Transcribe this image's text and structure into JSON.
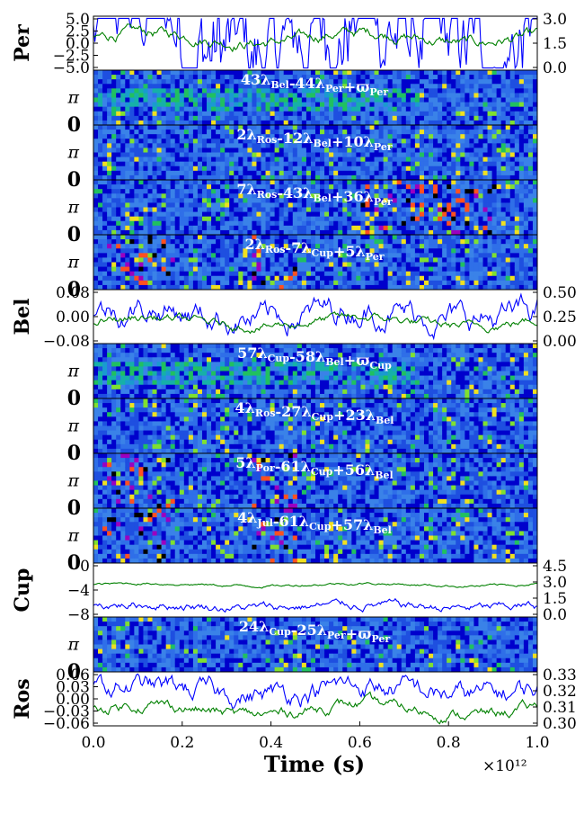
{
  "chart_data": {
    "type": "line",
    "xlabel": "Time (s)",
    "x_multiplier": "×10¹²",
    "xlim": [
      0.0,
      1.0
    ],
    "x_ticks": [
      "0.0",
      "0.2",
      "0.4",
      "0.6",
      "0.8",
      "1.0"
    ],
    "pi_label": "π",
    "zero_label": "0",
    "line_colors": {
      "blue": "#0000ff",
      "green": "#008000"
    },
    "heatmap_palette": [
      "#0000cc",
      "#1e4fe0",
      "#2f6fe8",
      "#3a82e8",
      "#1a9ad0",
      "#16b0a8",
      "#20c060",
      "#7fe030",
      "#f0e020",
      "#ff5020",
      "#9b00c0",
      "#000000"
    ],
    "planets": [
      {
        "name": "Per",
        "left_ticks": [
          "5.0",
          "2.5",
          "0.0",
          "−2.5",
          "−5.0"
        ],
        "left_lim": [
          -5.0,
          5.0
        ],
        "right_ticks": [
          "3.0",
          "1.5",
          "0.0"
        ],
        "right_lim": [
          0.0,
          3.6
        ],
        "blue_level": 0.6,
        "blue_amp": 1.3,
        "green_level": 0.6,
        "green_amp": 0.25,
        "resonances": [
          {
            "label": "43λBel-44λPer+ϖPer",
            "style": "librating-then-black"
          },
          {
            "label": "2λRos-12λBel+10λPer",
            "style": "circulating"
          },
          {
            "label": "7λRos-43λBel+36λPer",
            "style": "bands-late"
          },
          {
            "label": "2λRos-7λCup+5λPer",
            "style": "bands-early"
          }
        ]
      },
      {
        "name": "Bel",
        "left_ticks": [
          "0.08",
          "0.00",
          "−0.08"
        ],
        "left_lim": [
          -0.1,
          0.1
        ],
        "right_ticks": [
          "0.50",
          "0.25",
          "0.00"
        ],
        "right_lim": [
          0.0,
          0.55
        ],
        "blue_level": 0.55,
        "blue_amp": 0.25,
        "green_level": 0.4,
        "green_amp": 0.2,
        "resonances": [
          {
            "label": "57λCup-58λBel+ϖCup",
            "style": "librating-then-black"
          },
          {
            "label": "4λRos-27λCup+23λBel",
            "style": "circulating"
          },
          {
            "label": "5λPor-61λCup+56λBel",
            "style": "bands-early"
          },
          {
            "label": "4λJul-61λCup+57λBel",
            "style": "bands-early"
          }
        ]
      },
      {
        "name": "Cup",
        "left_ticks": [
          "0",
          "−4",
          "−8"
        ],
        "left_lim": [
          -10.0,
          1.5
        ],
        "right_ticks": [
          "4.5",
          "3.0",
          "1.5",
          "0.0"
        ],
        "right_lim": [
          0.0,
          4.7
        ],
        "blue_level": 0.2,
        "blue_amp": 0.08,
        "green_level": 0.6,
        "green_amp": 0.06,
        "resonances": [
          {
            "label": "24λCup-25λPer+ϖPer",
            "style": "circulating"
          }
        ]
      },
      {
        "name": "Ros",
        "left_ticks": [
          "0.06",
          "0.03",
          "0.00",
          "−0.03",
          "−0.06"
        ],
        "left_lim": [
          -0.06,
          0.06
        ],
        "right_ticks": [
          "0.33",
          "0.32",
          "0.31",
          "0.30"
        ],
        "right_lim": [
          0.3,
          0.33
        ],
        "blue_level": 0.65,
        "blue_amp": 0.2,
        "green_level": 0.3,
        "green_amp": 0.25,
        "resonances": []
      }
    ]
  }
}
